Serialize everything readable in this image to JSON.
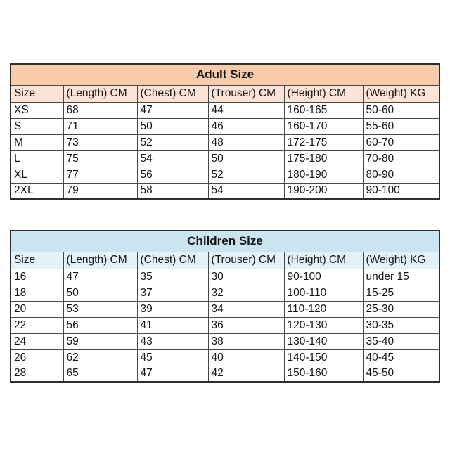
{
  "page": {
    "background": "#ffffff",
    "text_color": "#141414",
    "border_color": "#474747"
  },
  "tables": [
    {
      "name": "adult",
      "title": "Adult Size",
      "title_bg": "#F8CBAD",
      "header_bg": "#FCE4D6",
      "columns": [
        "Size",
        "(Length) CM",
        "(Chest) CM",
        "(Trouser) CM",
        "(Height) CM",
        "(Weight) KG"
      ],
      "rows": [
        [
          "XS",
          "68",
          "47",
          "44",
          "160-165",
          "50-60"
        ],
        [
          "S",
          "71",
          "50",
          "46",
          "160-170",
          "55-60"
        ],
        [
          "M",
          "73",
          "52",
          "48",
          "172-175",
          "60-70"
        ],
        [
          "L",
          "75",
          "54",
          "50",
          "175-180",
          "70-80"
        ],
        [
          "XL",
          "77",
          "56",
          "52",
          "180-190",
          "80-90"
        ],
        [
          "2XL",
          "79",
          "58",
          "54",
          "190-200",
          "90-100"
        ]
      ]
    },
    {
      "name": "children",
      "title": "Children Size",
      "title_bg": "#CBE5F0",
      "header_bg": "#E3F1F8",
      "columns": [
        "Size",
        "(Length) CM",
        "(Chest) CM",
        "(Trouser) CM",
        "(Height) CM",
        "(Weight) KG"
      ],
      "rows": [
        [
          "16",
          "47",
          "35",
          "30",
          "90-100",
          "under 15"
        ],
        [
          "18",
          "50",
          "37",
          "32",
          "100-110",
          "15-25"
        ],
        [
          "20",
          "53",
          "39",
          "34",
          "110-120",
          "25-30"
        ],
        [
          "22",
          "56",
          "41",
          "36",
          "120-130",
          "30-35"
        ],
        [
          "24",
          "59",
          "43",
          "38",
          "130-140",
          "35-40"
        ],
        [
          "26",
          "62",
          "45",
          "40",
          "140-150",
          "40-45"
        ],
        [
          "28",
          "65",
          "47",
          "42",
          "150-160",
          "45-50"
        ]
      ]
    }
  ]
}
